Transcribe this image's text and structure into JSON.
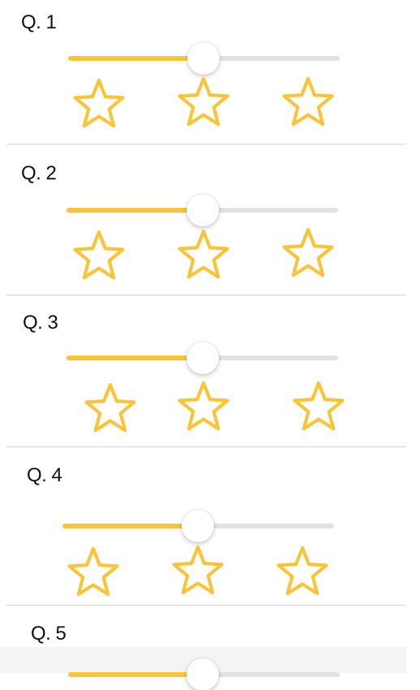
{
  "colors": {
    "accent": "#f8c53a",
    "track": "#e2e2e2",
    "divider": "#d4d4d4"
  },
  "questions": [
    {
      "label": "Q. 1",
      "slider_value": 0.5,
      "stars": [
        "star-outline-icon",
        "star-outline-icon",
        "star-outline-icon"
      ]
    },
    {
      "label": "Q. 2",
      "slider_value": 0.5,
      "stars": [
        "star-outline-icon",
        "star-outline-icon",
        "star-outline-icon"
      ]
    },
    {
      "label": "Q. 3",
      "slider_value": 0.5,
      "stars": [
        "star-outline-icon",
        "star-outline-icon",
        "star-outline-icon"
      ]
    },
    {
      "label": "Q. 4",
      "slider_value": 0.5,
      "stars": [
        "star-outline-icon",
        "star-outline-icon",
        "star-outline-icon"
      ]
    },
    {
      "label": "Q. 5",
      "slider_value": 0.5,
      "stars": []
    }
  ]
}
